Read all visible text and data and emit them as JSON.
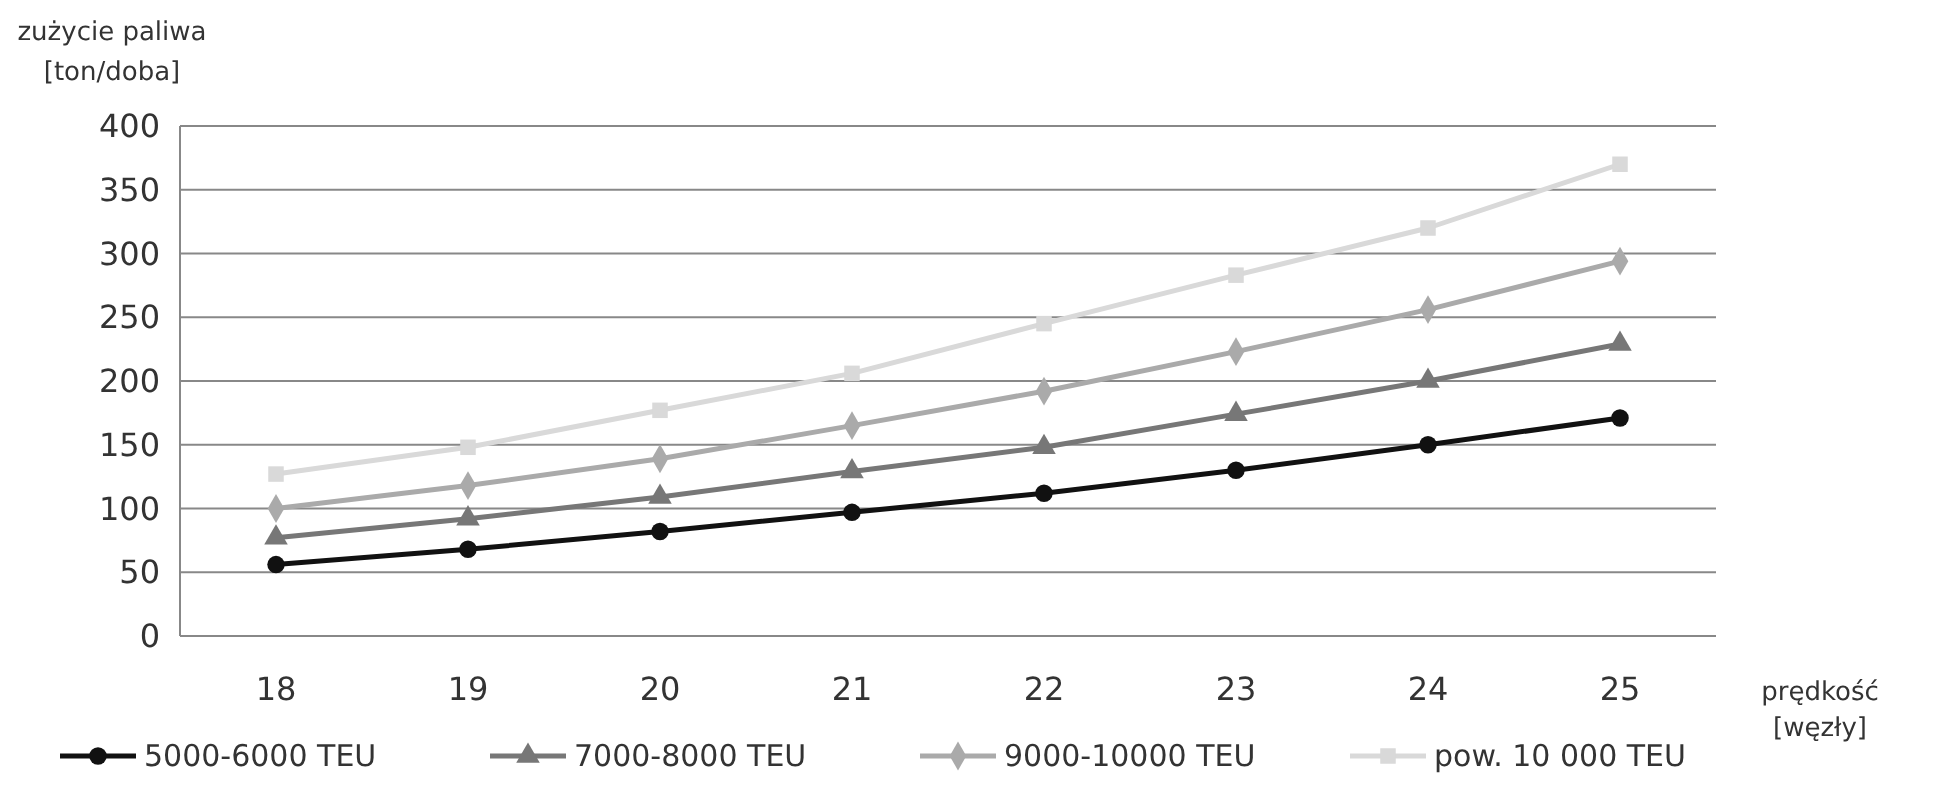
{
  "chart_data": {
    "type": "line",
    "categories": [
      "18",
      "19",
      "20",
      "21",
      "22",
      "23",
      "24",
      "25"
    ],
    "xlabel": "prędkość [węzły]",
    "ylabel": "zużycie paliwa [ton/doba]",
    "ylim": [
      0,
      400
    ],
    "yticks": [
      0,
      50,
      100,
      150,
      200,
      250,
      300,
      350,
      400
    ],
    "grid": "y",
    "legend": "bottom",
    "line_style": "solid",
    "series": [
      {
        "name": "5000-6000 TEU",
        "color": "#111111",
        "marker": "circle",
        "values": [
          56,
          68,
          82,
          97,
          112,
          130,
          150,
          171
        ]
      },
      {
        "name": "7000-8000 TEU",
        "color": "#777777",
        "marker": "triangle",
        "values": [
          77,
          92,
          109,
          129,
          148,
          174,
          200,
          229
        ]
      },
      {
        "name": "9000-10000 TEU",
        "color": "#aaaaaa",
        "marker": "diamond",
        "values": [
          100,
          118,
          139,
          165,
          192,
          223,
          256,
          294
        ]
      },
      {
        "name": "pow. 10 000 TEU",
        "color": "#d9d9d9",
        "marker": "square",
        "values": [
          127,
          148,
          177,
          206,
          245,
          283,
          320,
          370
        ]
      }
    ]
  }
}
